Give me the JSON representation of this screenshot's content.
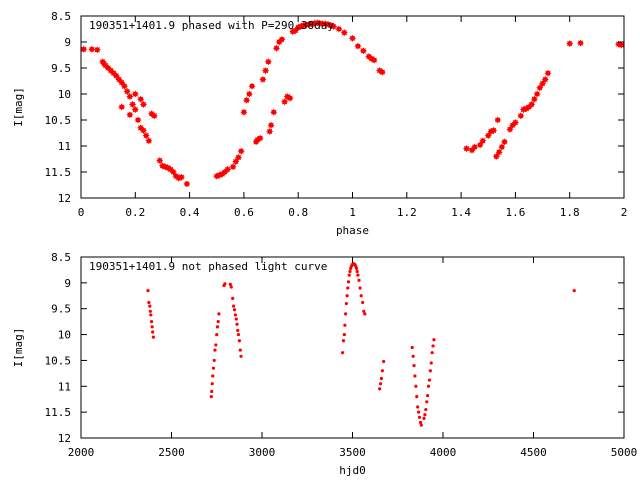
{
  "chart_data": [
    {
      "type": "scatter",
      "title": "190351+1401.9 phased with P=290.38day",
      "xlabel": "phase",
      "ylabel": "I[mag]",
      "xlim": [
        0,
        2
      ],
      "ylim": [
        8.5,
        12
      ],
      "y_reversed": true,
      "x_ticks": [
        0,
        0.2,
        0.4,
        0.6,
        0.8,
        1,
        1.2,
        1.4,
        1.6,
        1.8,
        2
      ],
      "x_tick_labels": [
        "0",
        "0.2",
        "0.4",
        "0.6",
        "0.8",
        "1",
        "1.2",
        "1.4",
        "1.6",
        "1.8",
        "2"
      ],
      "y_ticks": [
        8.5,
        9,
        9.5,
        10,
        10.5,
        11,
        11.5,
        12
      ],
      "y_tick_labels": [
        "8.5",
        "9",
        "9.5",
        "10",
        "10.5",
        "11",
        "11.5",
        "12"
      ],
      "marker_color": "#ff0000",
      "marker": "filled-star",
      "points": [
        [
          0.01,
          9.14
        ],
        [
          0.04,
          9.14
        ],
        [
          0.06,
          9.15
        ],
        [
          0.08,
          9.38
        ],
        [
          0.085,
          9.42
        ],
        [
          0.09,
          9.45
        ],
        [
          0.1,
          9.5
        ],
        [
          0.11,
          9.55
        ],
        [
          0.12,
          9.6
        ],
        [
          0.13,
          9.65
        ],
        [
          0.14,
          9.72
        ],
        [
          0.15,
          9.78
        ],
        [
          0.16,
          9.85
        ],
        [
          0.17,
          9.95
        ],
        [
          0.18,
          10.05
        ],
        [
          0.19,
          10.2
        ],
        [
          0.2,
          10.3
        ],
        [
          0.21,
          10.5
        ],
        [
          0.22,
          10.65
        ],
        [
          0.23,
          10.7
        ],
        [
          0.24,
          10.8
        ],
        [
          0.25,
          10.9
        ],
        [
          0.26,
          10.38
        ],
        [
          0.27,
          10.42
        ],
        [
          0.15,
          10.25
        ],
        [
          0.18,
          10.4
        ],
        [
          0.2,
          10.0
        ],
        [
          0.22,
          10.1
        ],
        [
          0.23,
          10.2
        ],
        [
          0.29,
          11.28
        ],
        [
          0.3,
          11.38
        ],
        [
          0.31,
          11.4
        ],
        [
          0.32,
          11.42
        ],
        [
          0.33,
          11.45
        ],
        [
          0.34,
          11.5
        ],
        [
          0.35,
          11.58
        ],
        [
          0.36,
          11.62
        ],
        [
          0.37,
          11.6
        ],
        [
          0.39,
          11.73
        ],
        [
          0.5,
          11.58
        ],
        [
          0.51,
          11.56
        ],
        [
          0.52,
          11.54
        ],
        [
          0.53,
          11.5
        ],
        [
          0.54,
          11.45
        ],
        [
          0.56,
          11.4
        ],
        [
          0.57,
          11.3
        ],
        [
          0.58,
          11.22
        ],
        [
          0.59,
          11.1
        ],
        [
          0.6,
          10.35
        ],
        [
          0.61,
          10.12
        ],
        [
          0.62,
          10.0
        ],
        [
          0.63,
          9.85
        ],
        [
          0.645,
          10.92
        ],
        [
          0.65,
          10.88
        ],
        [
          0.66,
          10.85
        ],
        [
          0.67,
          9.72
        ],
        [
          0.68,
          9.55
        ],
        [
          0.69,
          9.38
        ],
        [
          0.695,
          10.72
        ],
        [
          0.7,
          10.6
        ],
        [
          0.71,
          10.35
        ],
        [
          0.72,
          9.12
        ],
        [
          0.73,
          9.0
        ],
        [
          0.74,
          8.95
        ],
        [
          0.75,
          10.15
        ],
        [
          0.76,
          10.05
        ],
        [
          0.77,
          10.08
        ],
        [
          0.78,
          8.8
        ],
        [
          0.79,
          8.78
        ],
        [
          0.8,
          8.72
        ],
        [
          0.81,
          8.7
        ],
        [
          0.82,
          8.68
        ],
        [
          0.83,
          8.67
        ],
        [
          0.84,
          8.66
        ],
        [
          0.85,
          8.65
        ],
        [
          0.86,
          8.64
        ],
        [
          0.87,
          8.63
        ],
        [
          0.88,
          8.64
        ],
        [
          0.89,
          8.65
        ],
        [
          0.9,
          8.65
        ],
        [
          0.91,
          8.66
        ],
        [
          0.92,
          8.68
        ],
        [
          0.93,
          8.7
        ],
        [
          0.95,
          8.75
        ],
        [
          0.97,
          8.82
        ],
        [
          1.0,
          8.93
        ],
        [
          1.02,
          9.08
        ],
        [
          1.04,
          9.17
        ],
        [
          1.06,
          9.28
        ],
        [
          1.07,
          9.32
        ],
        [
          1.08,
          9.35
        ],
        [
          1.1,
          9.55
        ],
        [
          1.11,
          9.58
        ],
        [
          1.42,
          11.05
        ],
        [
          1.44,
          11.08
        ],
        [
          1.45,
          11.02
        ],
        [
          1.47,
          10.98
        ],
        [
          1.48,
          10.9
        ],
        [
          1.5,
          10.8
        ],
        [
          1.51,
          10.72
        ],
        [
          1.52,
          10.7
        ],
        [
          1.53,
          11.2
        ],
        [
          1.535,
          10.5
        ],
        [
          1.54,
          11.12
        ],
        [
          1.55,
          11.02
        ],
        [
          1.56,
          10.92
        ],
        [
          1.58,
          10.68
        ],
        [
          1.59,
          10.6
        ],
        [
          1.6,
          10.55
        ],
        [
          1.62,
          10.42
        ],
        [
          1.63,
          10.3
        ],
        [
          1.64,
          10.28
        ],
        [
          1.65,
          10.25
        ],
        [
          1.66,
          10.2
        ],
        [
          1.67,
          10.1
        ],
        [
          1.68,
          10.0
        ],
        [
          1.69,
          9.88
        ],
        [
          1.7,
          9.8
        ],
        [
          1.71,
          9.72
        ],
        [
          1.72,
          9.6
        ],
        [
          1.8,
          9.03
        ],
        [
          1.84,
          9.02
        ],
        [
          1.98,
          9.04
        ],
        [
          1.99,
          9.06
        ]
      ]
    },
    {
      "type": "scatter",
      "title": "190351+1401.9 not phased light curve",
      "xlabel": "hjd0",
      "ylabel": "I[mag]",
      "xlim": [
        2000,
        5000
      ],
      "ylim": [
        8.5,
        12
      ],
      "y_reversed": true,
      "x_ticks": [
        2000,
        2500,
        3000,
        3500,
        4000,
        4500,
        5000
      ],
      "x_tick_labels": [
        "2000",
        "2500",
        "3000",
        "3500",
        "4000",
        "4500",
        "5000"
      ],
      "y_ticks": [
        8.5,
        9,
        9.5,
        10,
        10.5,
        11,
        11.5,
        12
      ],
      "y_tick_labels": [
        "8.5",
        "9",
        "9.5",
        "10",
        "10.5",
        "11",
        "11.5",
        "12"
      ],
      "marker_color": "#ff0000",
      "marker": "dot",
      "points": [
        [
          2370,
          9.15
        ],
        [
          2375,
          9.38
        ],
        [
          2380,
          9.45
        ],
        [
          2383,
          9.55
        ],
        [
          2386,
          9.62
        ],
        [
          2390,
          9.75
        ],
        [
          2393,
          9.85
        ],
        [
          2396,
          9.95
        ],
        [
          2400,
          10.05
        ],
        [
          2720,
          11.2
        ],
        [
          2722,
          11.1
        ],
        [
          2725,
          10.95
        ],
        [
          2728,
          10.8
        ],
        [
          2732,
          10.65
        ],
        [
          2736,
          10.5
        ],
        [
          2740,
          10.3
        ],
        [
          2745,
          10.2
        ],
        [
          2750,
          10.0
        ],
        [
          2754,
          9.85
        ],
        [
          2758,
          9.75
        ],
        [
          2762,
          9.6
        ],
        [
          2790,
          9.05
        ],
        [
          2795,
          9.02
        ],
        [
          2825,
          9.03
        ],
        [
          2830,
          9.08
        ],
        [
          2838,
          9.3
        ],
        [
          2843,
          9.45
        ],
        [
          2848,
          9.52
        ],
        [
          2853,
          9.62
        ],
        [
          2858,
          9.7
        ],
        [
          2862,
          9.8
        ],
        [
          2866,
          9.92
        ],
        [
          2870,
          10.0
        ],
        [
          2875,
          10.12
        ],
        [
          2880,
          10.3
        ],
        [
          2884,
          10.42
        ],
        [
          3445,
          10.35
        ],
        [
          3450,
          10.12
        ],
        [
          3455,
          10.0
        ],
        [
          3458,
          9.82
        ],
        [
          3462,
          9.6
        ],
        [
          3466,
          9.4
        ],
        [
          3470,
          9.25
        ],
        [
          3474,
          9.1
        ],
        [
          3478,
          8.98
        ],
        [
          3482,
          8.85
        ],
        [
          3486,
          8.78
        ],
        [
          3490,
          8.72
        ],
        [
          3494,
          8.68
        ],
        [
          3498,
          8.65
        ],
        [
          3502,
          8.64
        ],
        [
          3506,
          8.63
        ],
        [
          3510,
          8.64
        ],
        [
          3514,
          8.65
        ],
        [
          3518,
          8.68
        ],
        [
          3522,
          8.72
        ],
        [
          3526,
          8.78
        ],
        [
          3530,
          8.85
        ],
        [
          3536,
          8.95
        ],
        [
          3542,
          9.1
        ],
        [
          3548,
          9.25
        ],
        [
          3556,
          9.38
        ],
        [
          3562,
          9.55
        ],
        [
          3568,
          9.6
        ],
        [
          3650,
          11.05
        ],
        [
          3655,
          10.95
        ],
        [
          3660,
          10.85
        ],
        [
          3665,
          10.7
        ],
        [
          3672,
          10.52
        ],
        [
          3830,
          10.25
        ],
        [
          3835,
          10.42
        ],
        [
          3840,
          10.6
        ],
        [
          3845,
          10.8
        ],
        [
          3850,
          11.0
        ],
        [
          3855,
          11.2
        ],
        [
          3860,
          11.4
        ],
        [
          3865,
          11.5
        ],
        [
          3870,
          11.6
        ],
        [
          3876,
          11.7
        ],
        [
          3880,
          11.75
        ],
        [
          3895,
          11.62
        ],
        [
          3900,
          11.55
        ],
        [
          3905,
          11.45
        ],
        [
          3910,
          11.3
        ],
        [
          3915,
          11.18
        ],
        [
          3920,
          11.0
        ],
        [
          3925,
          10.88
        ],
        [
          3930,
          10.7
        ],
        [
          3935,
          10.55
        ],
        [
          3940,
          10.35
        ],
        [
          3945,
          10.22
        ],
        [
          3950,
          10.1
        ],
        [
          4725,
          9.15
        ]
      ]
    }
  ]
}
